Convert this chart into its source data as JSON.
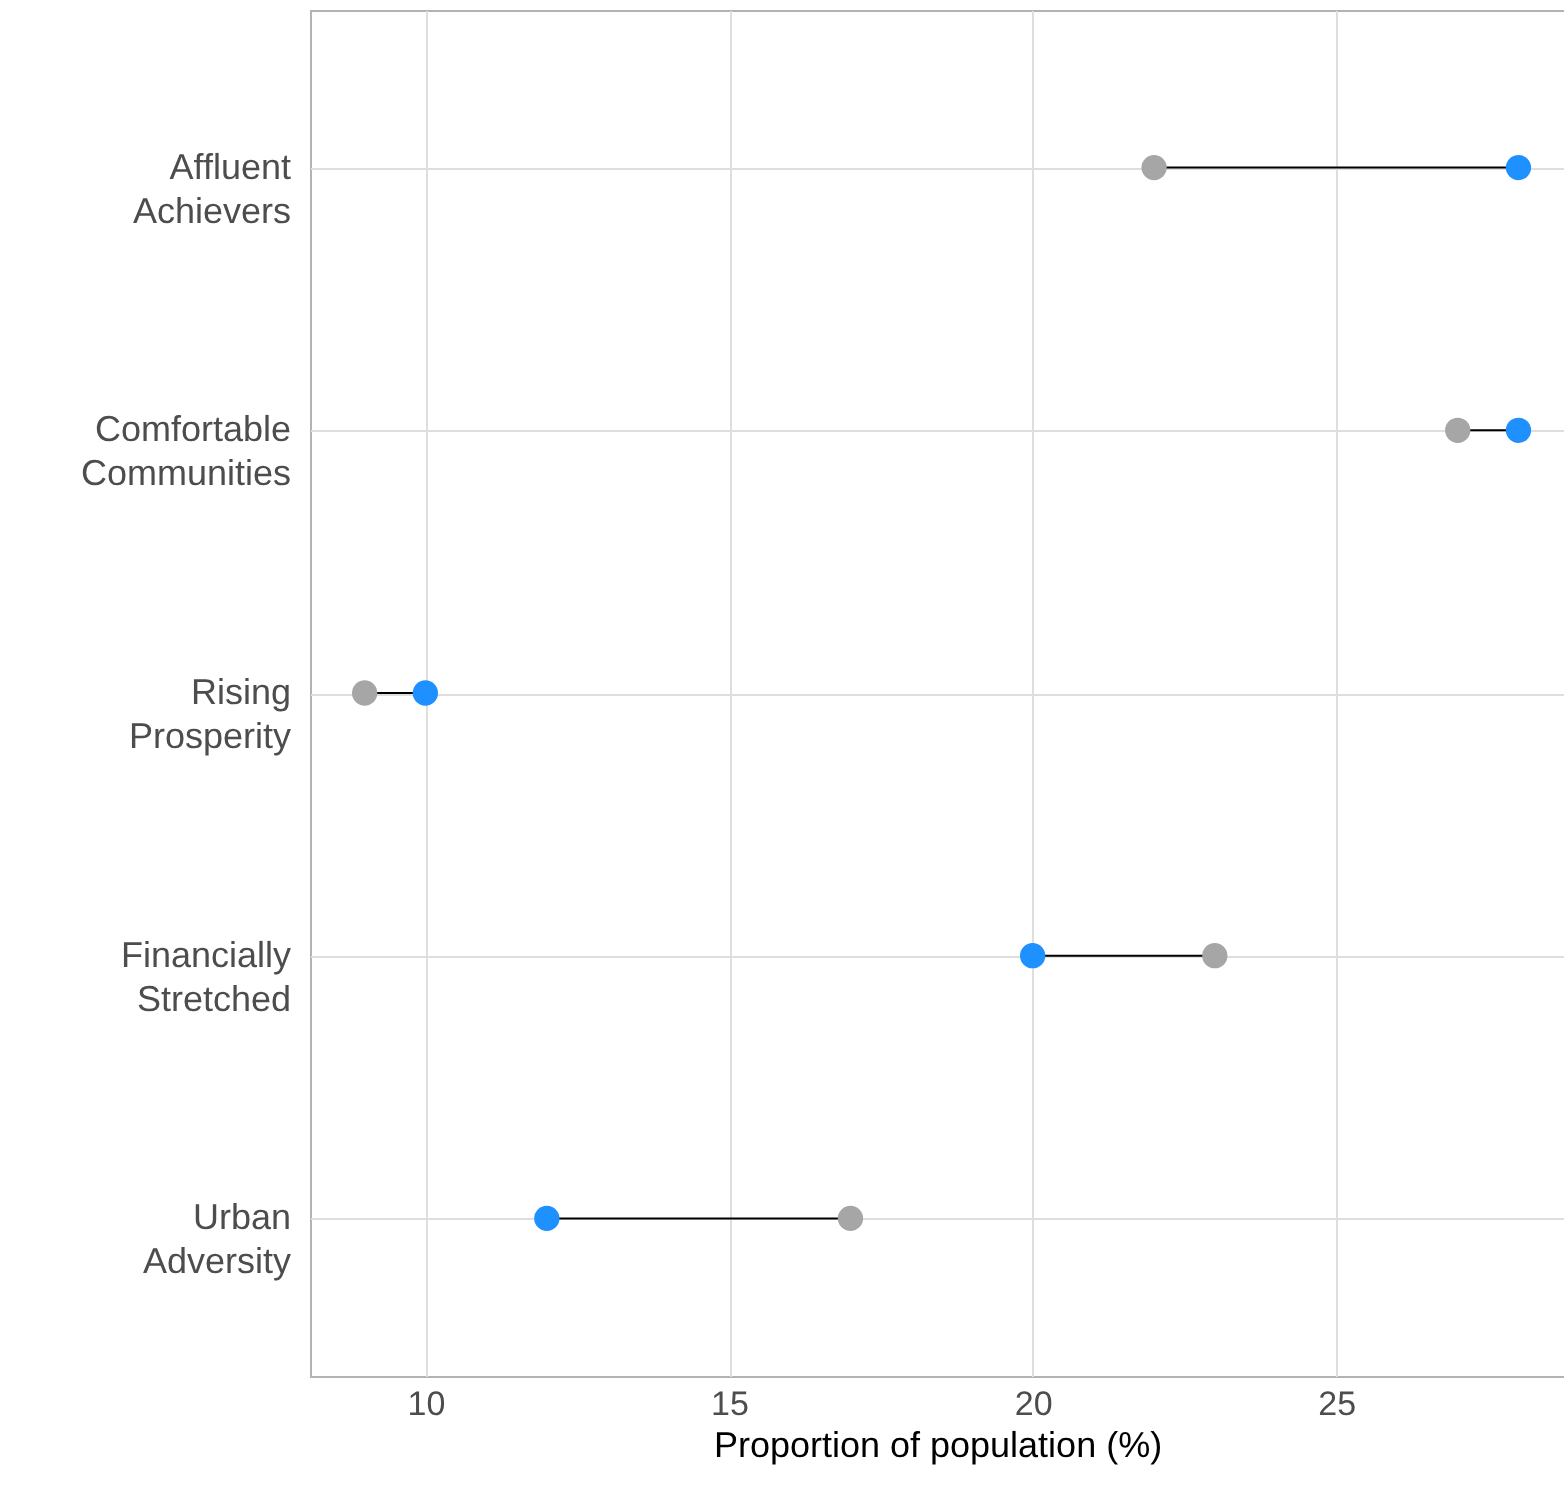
{
  "chart_data": {
    "type": "scatter",
    "orientation": "horizontal",
    "xlabel": "Proportion of population (%)",
    "categories": [
      "Affluent Achievers",
      "Comfortable Communities",
      "Rising Prosperity",
      "Financially Stretched",
      "Urban Adversity"
    ],
    "series": [
      {
        "color": "#a6a6a6",
        "values": [
          22,
          27,
          9,
          23,
          17
        ]
      },
      {
        "color": "#1e90ff",
        "values": [
          28,
          28,
          10,
          20,
          12
        ]
      }
    ],
    "xlim": [
      8.1,
      28.75
    ],
    "xticks": [
      10,
      15,
      20,
      25
    ],
    "grid": true,
    "marker": "circle"
  }
}
